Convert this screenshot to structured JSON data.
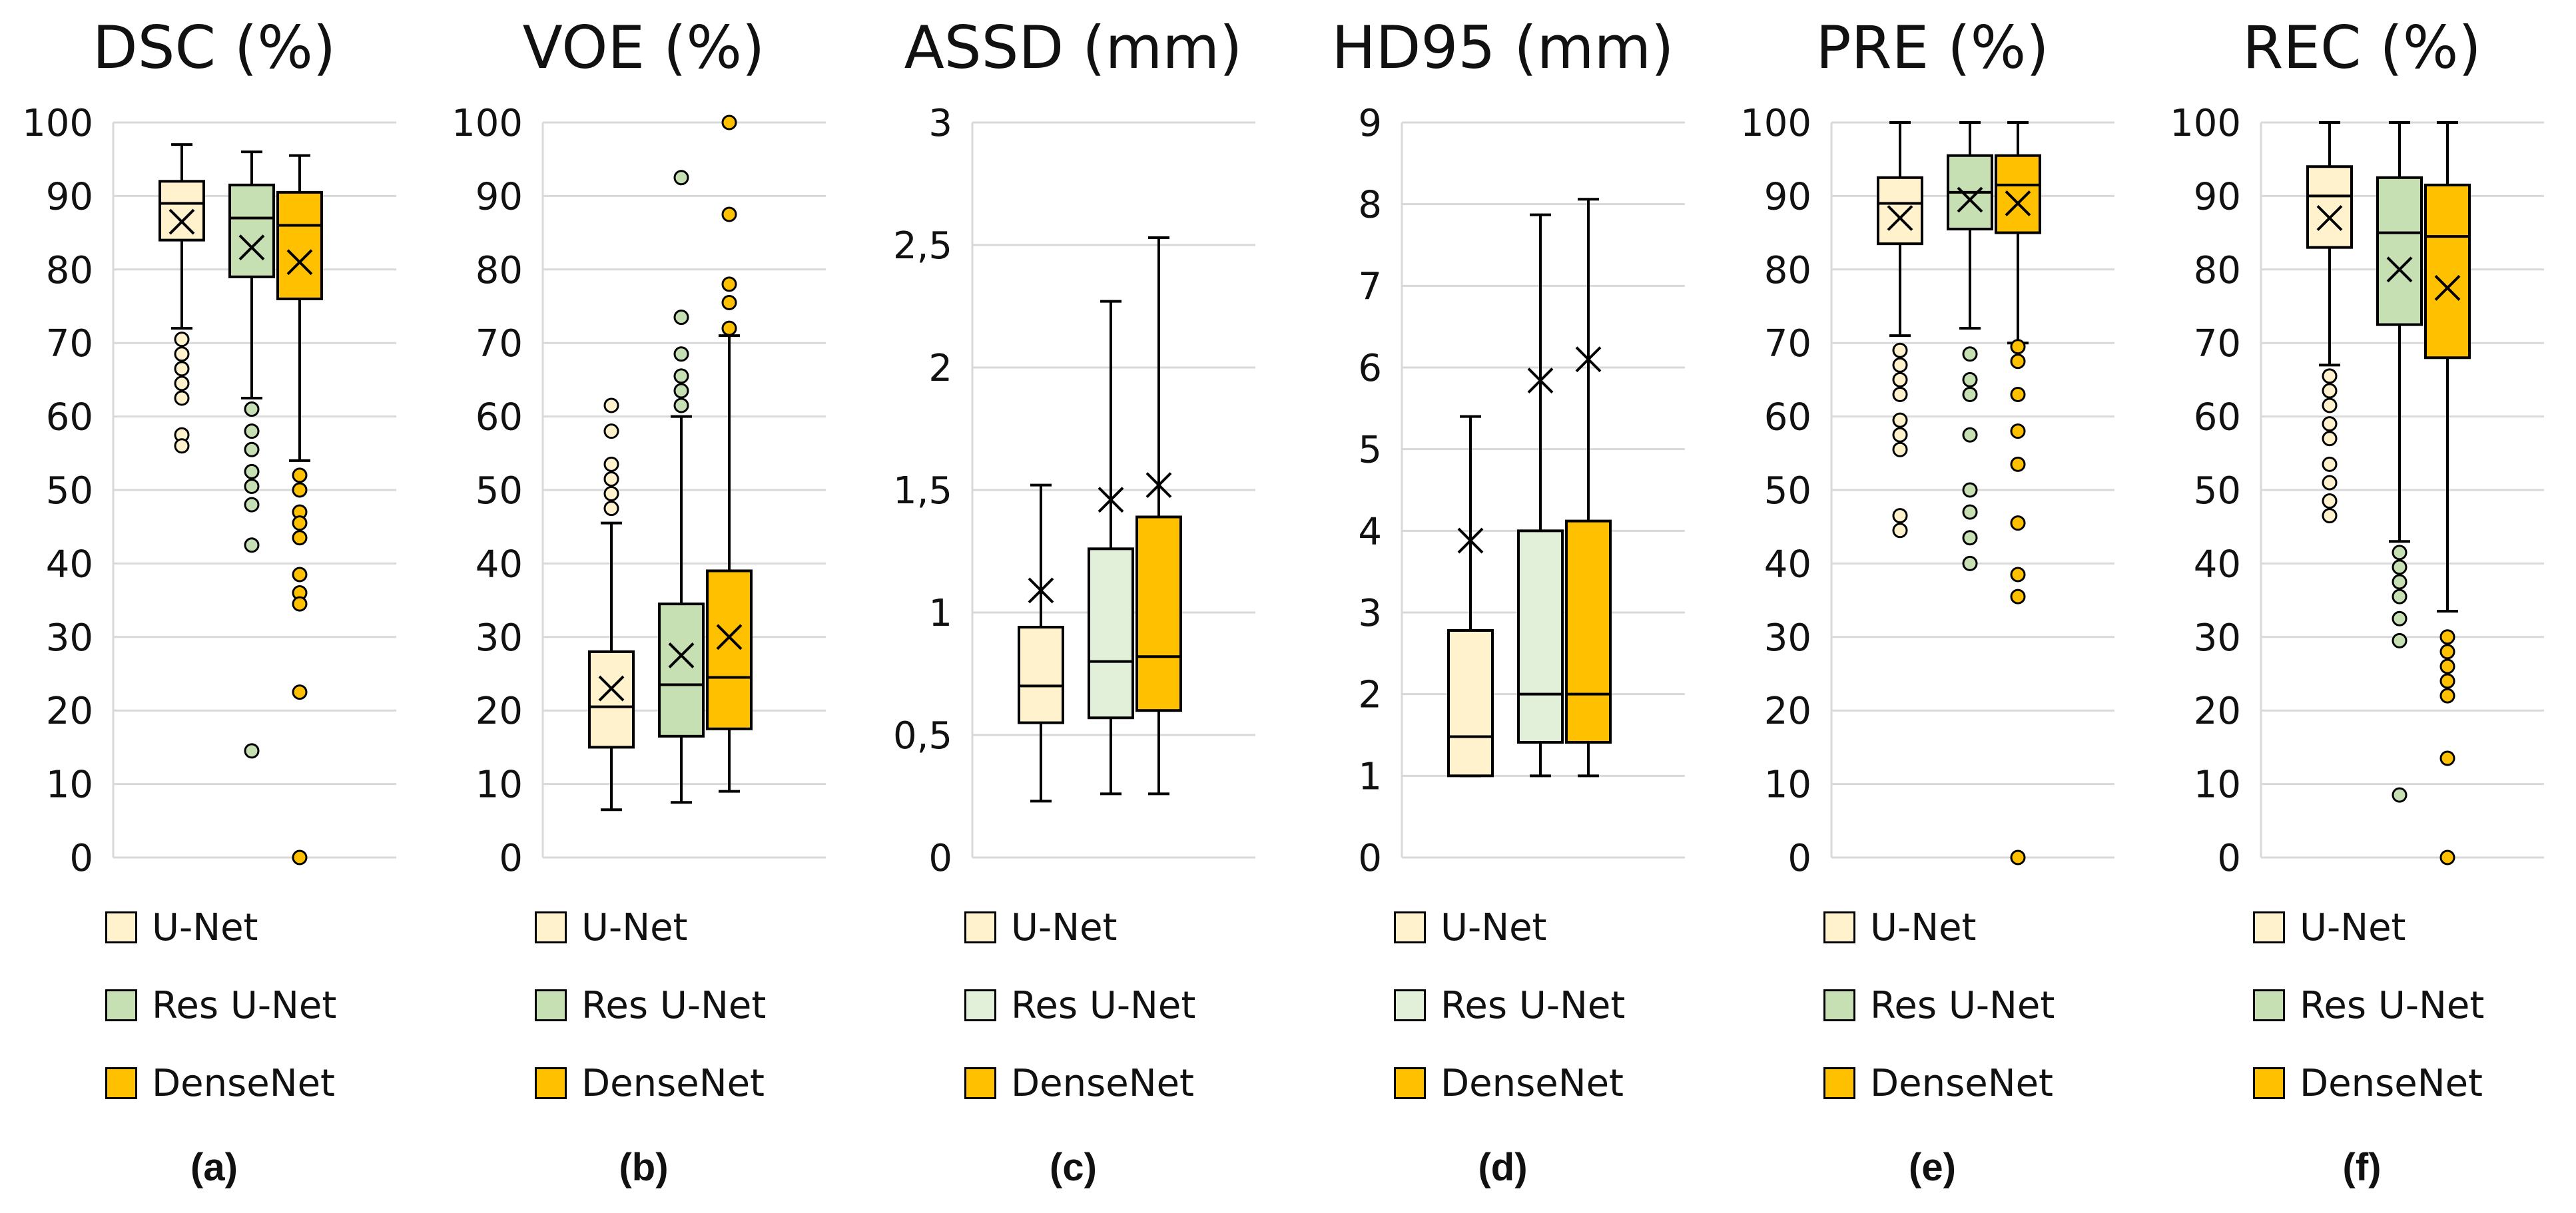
{
  "chart_data": [
    {
      "type": "box",
      "title": "DSC (%)",
      "panel_label": "(a)",
      "ylim": [
        0,
        100
      ],
      "yticks": [
        "0",
        "10",
        "20",
        "30",
        "40",
        "50",
        "60",
        "70",
        "80",
        "90",
        "100"
      ],
      "legend": [
        "U-Net",
        "Res U-Net",
        "DenseNet"
      ],
      "series": [
        {
          "name": "U-Net",
          "color": "#FFF2CC",
          "whisker_low": 72,
          "q1": 84,
          "median": 89,
          "q3": 92,
          "whisker_high": 97,
          "mean": 86.5,
          "outliers": [
            70.5,
            68.5,
            66.5,
            64.5,
            62.5,
            57.5,
            56
          ]
        },
        {
          "name": "Res U-Net",
          "color": "#C6E0B4",
          "whisker_low": 62.5,
          "q1": 79,
          "median": 87,
          "q3": 91.5,
          "whisker_high": 96,
          "mean": 83,
          "outliers": [
            61,
            58,
            55.5,
            52.5,
            50.5,
            48,
            42.5,
            14.5
          ]
        },
        {
          "name": "DenseNet",
          "color": "#FFC000",
          "whisker_low": 54,
          "q1": 76,
          "median": 86,
          "q3": 90.5,
          "whisker_high": 95.5,
          "mean": 81,
          "outliers": [
            52,
            50,
            47,
            45.5,
            43.5,
            38.5,
            36,
            34.5,
            22.5,
            0
          ]
        }
      ]
    },
    {
      "type": "box",
      "title": "VOE (%)",
      "panel_label": "(b)",
      "ylim": [
        0,
        100
      ],
      "yticks": [
        "0",
        "10",
        "20",
        "30",
        "40",
        "50",
        "60",
        "70",
        "80",
        "90",
        "100"
      ],
      "legend": [
        "U-Net",
        "Res U-Net",
        "DenseNet"
      ],
      "series": [
        {
          "name": "U-Net",
          "color": "#FFF2CC",
          "whisker_low": 6.5,
          "q1": 15,
          "median": 20.5,
          "q3": 28,
          "whisker_high": 45.5,
          "mean": 23,
          "outliers": [
            47.5,
            49.5,
            51.5,
            53.5,
            58,
            61.5
          ]
        },
        {
          "name": "Res U-Net",
          "color": "#C6E0B4",
          "whisker_low": 7.5,
          "q1": 16.5,
          "median": 23.5,
          "q3": 34.5,
          "whisker_high": 60,
          "mean": 27.5,
          "outliers": [
            61.5,
            63.5,
            65.5,
            68.5,
            73.5,
            92.5
          ]
        },
        {
          "name": "DenseNet",
          "color": "#FFC000",
          "whisker_low": 9,
          "q1": 17.5,
          "median": 24.5,
          "q3": 39,
          "whisker_high": 71,
          "mean": 30,
          "outliers": [
            72,
            75.5,
            78,
            87.5,
            100
          ]
        }
      ]
    },
    {
      "type": "box",
      "title": "ASSD (mm)",
      "panel_label": "(c)",
      "ylim": [
        0,
        3
      ],
      "yticks": [
        "0",
        "0,5",
        "1",
        "1,5",
        "2",
        "2,5",
        "3"
      ],
      "legend": [
        "U-Net",
        "Res U-Net",
        "DenseNet"
      ],
      "series": [
        {
          "name": "U-Net",
          "color": "#FFF2CC",
          "whisker_low": 0.23,
          "q1": 0.55,
          "median": 0.7,
          "q3": 0.94,
          "whisker_high": 1.52,
          "mean": 1.09,
          "outliers": []
        },
        {
          "name": "Res U-Net",
          "color": "#E2F0D9",
          "whisker_low": 0.26,
          "q1": 0.57,
          "median": 0.8,
          "q3": 1.26,
          "whisker_high": 2.27,
          "mean": 1.46,
          "outliers": []
        },
        {
          "name": "DenseNet",
          "color": "#FFC000",
          "whisker_low": 0.26,
          "q1": 0.6,
          "median": 0.82,
          "q3": 1.39,
          "whisker_high": 2.53,
          "mean": 1.52,
          "outliers": []
        }
      ]
    },
    {
      "type": "box",
      "title": "HD95 (mm)",
      "panel_label": "(d)",
      "ylim": [
        0,
        9
      ],
      "yticks": [
        "0",
        "1",
        "2",
        "3",
        "4",
        "5",
        "6",
        "7",
        "8",
        "9"
      ],
      "legend": [
        "U-Net",
        "Res U-Net",
        "DenseNet"
      ],
      "series": [
        {
          "name": "U-Net",
          "color": "#FFF2CC",
          "whisker_low": 1.0,
          "q1": 1.0,
          "median": 1.48,
          "q3": 2.78,
          "whisker_high": 5.4,
          "mean": 3.88,
          "outliers": []
        },
        {
          "name": "Res U-Net",
          "color": "#E2F0D9",
          "whisker_low": 1.0,
          "q1": 1.41,
          "median": 2.0,
          "q3": 4.0,
          "whisker_high": 7.87,
          "mean": 5.84,
          "outliers": []
        },
        {
          "name": "DenseNet",
          "color": "#FFC000",
          "whisker_low": 1.0,
          "q1": 1.41,
          "median": 2.0,
          "q3": 4.12,
          "whisker_high": 8.06,
          "mean": 6.1,
          "outliers": []
        }
      ]
    },
    {
      "type": "box",
      "title": "PRE (%)",
      "panel_label": "(e)",
      "ylim": [
        0,
        100
      ],
      "yticks": [
        "0",
        "10",
        "20",
        "30",
        "40",
        "50",
        "60",
        "70",
        "80",
        "90",
        "100"
      ],
      "legend": [
        "U-Net",
        "Res U-Net",
        "DenseNet"
      ],
      "series": [
        {
          "name": "U-Net",
          "color": "#FFF2CC",
          "whisker_low": 71,
          "q1": 83.5,
          "median": 89,
          "q3": 92.5,
          "whisker_high": 100,
          "mean": 87,
          "outliers": [
            69,
            67,
            65,
            63,
            59.5,
            57.5,
            55.5,
            46.5,
            44.5
          ]
        },
        {
          "name": "Res U-Net",
          "color": "#C6E0B4",
          "whisker_low": 72,
          "q1": 85.5,
          "median": 90.5,
          "q3": 95.5,
          "whisker_high": 100,
          "mean": 89.5,
          "outliers": [
            68.5,
            65,
            63,
            57.5,
            50,
            47,
            43.5,
            40
          ]
        },
        {
          "name": "DenseNet",
          "color": "#FFC000",
          "whisker_low": 70,
          "q1": 85,
          "median": 91.5,
          "q3": 95.5,
          "whisker_high": 100,
          "mean": 89,
          "outliers": [
            69.5,
            67.5,
            63,
            58,
            53.5,
            45.5,
            38.5,
            35.5,
            0
          ]
        }
      ]
    },
    {
      "type": "box",
      "title": "REC (%)",
      "panel_label": "(f)",
      "ylim": [
        0,
        100
      ],
      "yticks": [
        "0",
        "10",
        "20",
        "30",
        "40",
        "50",
        "60",
        "70",
        "80",
        "90",
        "100"
      ],
      "legend": [
        "U-Net",
        "Res U-Net",
        "DenseNet"
      ],
      "series": [
        {
          "name": "U-Net",
          "color": "#FFF2CC",
          "whisker_low": 67,
          "q1": 83,
          "median": 90,
          "q3": 94,
          "whisker_high": 100,
          "mean": 87,
          "outliers": [
            65.5,
            63.5,
            61.5,
            59,
            57,
            53.5,
            51,
            48.5,
            46.5
          ]
        },
        {
          "name": "Res U-Net",
          "color": "#C6E0B4",
          "whisker_low": 43,
          "q1": 72.5,
          "median": 85,
          "q3": 92.5,
          "whisker_high": 100,
          "mean": 80,
          "outliers": [
            41.5,
            39.5,
            37.5,
            35.5,
            32.5,
            29.5,
            8.5
          ]
        },
        {
          "name": "DenseNet",
          "color": "#FFC000",
          "whisker_low": 33.5,
          "q1": 68,
          "median": 84.5,
          "q3": 91.5,
          "whisker_high": 100,
          "mean": 77.5,
          "outliers": [
            30,
            28,
            26,
            24,
            22,
            13.5,
            0
          ]
        }
      ]
    }
  ]
}
